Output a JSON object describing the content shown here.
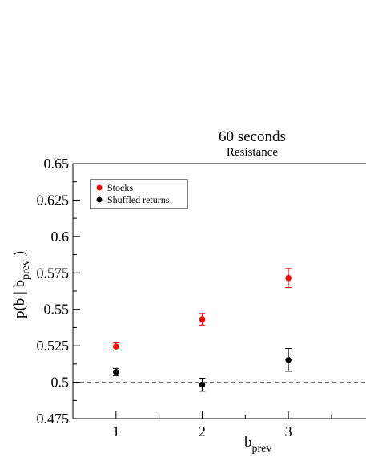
{
  "chart_data": {
    "type": "scatter",
    "title": "60 seconds",
    "subtitle": "Resistance",
    "xlabel": "b",
    "xlabel_sub": "prev",
    "ylabel_main": "p(b | b",
    "ylabel_sub": "prev",
    "ylabel_close": " )",
    "xlim": [
      0.5,
      3.9
    ],
    "ylim": [
      0.475,
      0.65
    ],
    "x_ticks": [
      1,
      2,
      3
    ],
    "x_tick_labels": [
      "1",
      "2",
      "3"
    ],
    "y_ticks": [
      0.475,
      0.5,
      0.525,
      0.55,
      0.575,
      0.6,
      0.625,
      0.65
    ],
    "y_tick_labels": [
      "0.475",
      "0.5",
      "0.525",
      "0.55",
      "0.575",
      "0.6",
      "0.625",
      "0.65"
    ],
    "reference_line": {
      "y": 0.5,
      "style": "dashed"
    },
    "legend_position": "top-left",
    "series": [
      {
        "name": "Stocks",
        "color": "#ff0000",
        "points": [
          {
            "x": 1,
            "y": 0.5245,
            "err": 0.0025
          },
          {
            "x": 2,
            "y": 0.5432,
            "err": 0.004
          },
          {
            "x": 3,
            "y": 0.5715,
            "err": 0.0065
          }
        ]
      },
      {
        "name": "Shuffled returns",
        "color": "#000000",
        "points": [
          {
            "x": 1,
            "y": 0.507,
            "err": 0.0025
          },
          {
            "x": 2,
            "y": 0.4983,
            "err": 0.0045
          },
          {
            "x": 3,
            "y": 0.5153,
            "err": 0.0078
          }
        ]
      }
    ]
  }
}
